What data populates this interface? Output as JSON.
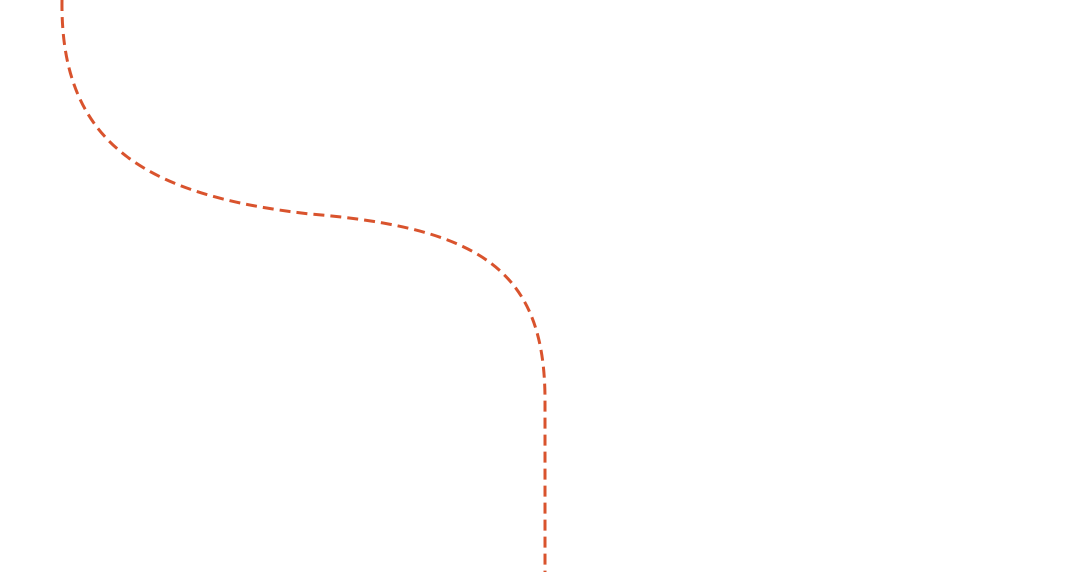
{
  "canvas": {
    "background": "#ffffff"
  },
  "connector": {
    "style": "dashed",
    "color": "#d9532d"
  }
}
